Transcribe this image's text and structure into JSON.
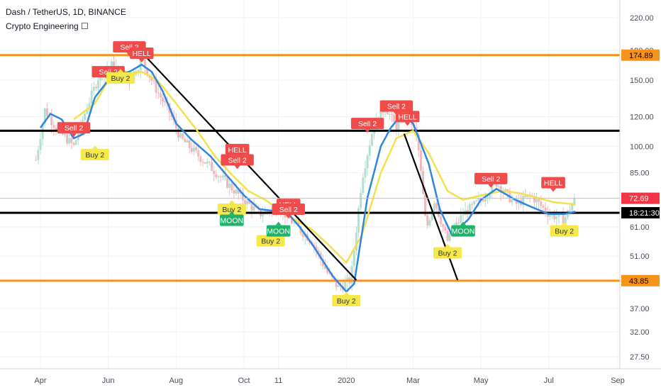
{
  "header": {
    "symbol_line": "Dash / TetherUS, 1D, BINANCE",
    "indicator_line": "Crypto Engineering ☐"
  },
  "colors": {
    "background": "#ffffff",
    "up_candle": "#b2dfcf",
    "down_candle": "#f0b8bd",
    "fast_ma": "#2e86de",
    "slow_ma": "#f4e04d",
    "level_orange": "#f7931a",
    "level_black": "#000000",
    "sell_tag": "#ef4b4b",
    "buy_tag": "#f4e84a",
    "moon_tag": "#1fb36a",
    "current_price": "#f23645",
    "axis_text": "#4a4e59"
  },
  "chart_data": {
    "type": "candlestick",
    "y_scale": "log",
    "ylim": [
      25,
      240
    ],
    "x_ticks": [
      "Apr",
      "Jun",
      "Aug",
      "Oct",
      "11",
      "2020",
      "Mar",
      "May",
      "Jul",
      "Sep"
    ],
    "y_ticks": [
      220.0,
      180.0,
      150.0,
      120.0,
      100.0,
      85.0,
      72.69,
      61.0,
      51.0,
      43.85,
      37.0,
      32.0,
      27.5
    ],
    "price_labels": [
      {
        "text": "174.89",
        "value": 174.89,
        "kind": "level"
      },
      {
        "text": "72.69",
        "value": 72.69,
        "kind": "current"
      },
      {
        "text": "18:21:30",
        "value": 66.5,
        "kind": "countdown"
      },
      {
        "text": "43.85",
        "value": 43.85,
        "kind": "level"
      }
    ],
    "grid": true,
    "horizontal_levels": [
      {
        "value": 174.89,
        "color": "orange"
      },
      {
        "value": 110,
        "color": "black"
      },
      {
        "value": 66.5,
        "color": "black"
      },
      {
        "value": 43.85,
        "color": "orange"
      }
    ],
    "trendlines": [
      {
        "from": {
          "x": "Jul 1 2019",
          "y": 178
        },
        "to": {
          "x": "Jan 10 2020",
          "y": 44
        }
      },
      {
        "from": {
          "x": "Feb 22 2020",
          "y": 108
        },
        "to": {
          "x": "Apr 10 2020",
          "y": 44
        }
      }
    ],
    "series": [
      {
        "name": "fast",
        "x": [
          "Apr 1 2019",
          "Apr 10 2019",
          "Apr 20 2019",
          "May 1 2019",
          "May 10 2019",
          "May 20 2019",
          "Jun 1 2019",
          "Jun 10 2019",
          "Jun 20 2019",
          "Jul 1 2019",
          "Jul 10 2019",
          "Jul 20 2019",
          "Aug 1 2019",
          "Aug 15 2019",
          "Sep 1 2019",
          "Sep 15 2019",
          "Oct 1 2019",
          "Oct 15 2019",
          "Nov 1 2019",
          "Nov 10 2019",
          "Nov 20 2019",
          "Dec 1 2019",
          "Dec 10 2019",
          "Dec 20 2019",
          "Jan 1 2020",
          "Jan 8 2020",
          "Jan 20 2020",
          "Feb 1 2020",
          "Feb 10 2020",
          "Feb 20 2020",
          "Mar 1 2020",
          "Mar 15 2020",
          "Mar 25 2020",
          "Apr 5 2020",
          "Apr 20 2020",
          "May 1 2020",
          "May 15 2020",
          "Jun 1 2020",
          "Jun 15 2020",
          "Jul 1 2020",
          "Jul 15 2020",
          "Jul 25 2020"
        ],
        "values": [
          112,
          122,
          118,
          105,
          108,
          135,
          150,
          155,
          158,
          165,
          158,
          140,
          115,
          104,
          94,
          84,
          74,
          68,
          67,
          66,
          61,
          55,
          50,
          45,
          41,
          43,
          73,
          100,
          112,
          122,
          115,
          90,
          68,
          58,
          64,
          72,
          77,
          72,
          69,
          66,
          66,
          67
        ]
      },
      {
        "name": "slow",
        "x": [
          "May 1 2019",
          "May 20 2019",
          "Jun 1 2019",
          "Jun 20 2019",
          "Jul 1 2019",
          "Jul 15 2019",
          "Aug 1 2019",
          "Aug 20 2019",
          "Sep 5 2019",
          "Sep 20 2019",
          "Oct 5 2019",
          "Oct 20 2019",
          "Nov 1 2019",
          "Nov 15 2019",
          "Dec 1 2019",
          "Dec 15 2019",
          "Jan 1 2020",
          "Jan 15 2020",
          "Feb 1 2020",
          "Feb 15 2020",
          "Mar 1 2020",
          "Mar 15 2020",
          "Apr 1 2020",
          "Apr 15 2020",
          "May 1 2020",
          "May 20 2020",
          "Jun 5 2020",
          "Jun 20 2020",
          "Jul 5 2020",
          "Jul 25 2020"
        ],
        "values": [
          118,
          130,
          150,
          155,
          158,
          150,
          130,
          110,
          94,
          84,
          76,
          72,
          68,
          64,
          60,
          55,
          49,
          58,
          85,
          105,
          110,
          96,
          76,
          72,
          74,
          76,
          75,
          73,
          71,
          70
        ]
      },
      {
        "name": "price",
        "x": [
          "Mar 28 2019",
          "Apr 5 2019",
          "Apr 15 2019",
          "May 1 2019",
          "May 12 2019",
          "May 25 2019",
          "Jun 5 2019",
          "Jun 20 2019",
          "Jul 1 2019",
          "Jul 15 2019",
          "Jul 25 2019",
          "Aug 5 2019",
          "Aug 20 2019",
          "Sep 1 2019",
          "Sep 15 2019",
          "Oct 1 2019",
          "Oct 15 2019",
          "Nov 1 2019",
          "Nov 15 2019",
          "Dec 1 2019",
          "Dec 15 2019",
          "Dec 25 2019",
          "Jan 5 2020",
          "Jan 15 2020",
          "Jan 25 2020",
          "Feb 5 2020",
          "Feb 15 2020",
          "Feb 25 2020",
          "Mar 5 2020",
          "Mar 13 2020",
          "Mar 20 2020",
          "Apr 1 2020",
          "Apr 15 2020",
          "May 1 2020",
          "May 15 2020",
          "Jun 1 2020",
          "Jun 15 2020",
          "Jul 1 2020",
          "Jul 15 2020",
          "Jul 25 2020"
        ],
        "values": [
          92,
          125,
          112,
          100,
          125,
          158,
          165,
          150,
          170,
          140,
          125,
          105,
          95,
          88,
          80,
          72,
          66,
          69,
          62,
          56,
          46,
          42,
          44,
          82,
          112,
          128,
          112,
          125,
          104,
          60,
          72,
          56,
          66,
          72,
          80,
          70,
          74,
          66,
          64,
          72.69
        ]
      }
    ],
    "signals": [
      {
        "text": "Sell 2",
        "kind": "sell",
        "x": "May 1 2019",
        "y": 112
      },
      {
        "text": "Sell 2",
        "kind": "sell",
        "x": "Jun 1 2019",
        "y": 158
      },
      {
        "text": "Sell 2",
        "kind": "sell",
        "x": "Jun 20 2019",
        "y": 184
      },
      {
        "text": "HELL",
        "kind": "sell",
        "x": "Jul 1 2019",
        "y": 177
      },
      {
        "text": "HELL",
        "kind": "sell",
        "x": "Sep 25 2019",
        "y": 98
      },
      {
        "text": "Sell 2",
        "kind": "sell",
        "x": "Sep 25 2019",
        "y": 92
      },
      {
        "text": "HELL",
        "kind": "sell",
        "x": "Nov 10 2019",
        "y": 70
      },
      {
        "text": "Sell 2",
        "kind": "sell",
        "x": "Nov 10 2019",
        "y": 68
      },
      {
        "text": "Sell 2",
        "kind": "sell",
        "x": "Jan 20 2020",
        "y": 115
      },
      {
        "text": "Sell 2",
        "kind": "sell",
        "x": "Feb 15 2020",
        "y": 128
      },
      {
        "text": "HELL",
        "kind": "sell",
        "x": "Feb 25 2020",
        "y": 120
      },
      {
        "text": "Sell 2",
        "kind": "sell",
        "x": "May 10 2020",
        "y": 82
      },
      {
        "text": "HELL",
        "kind": "sell",
        "x": "Jul 5 2020",
        "y": 80
      },
      {
        "text": "Buy 2",
        "kind": "buy",
        "x": "Jun 12 2019",
        "y": 152
      },
      {
        "text": "Buy 2",
        "kind": "buy",
        "x": "May 20 2019",
        "y": 95
      },
      {
        "text": "Buy 2",
        "kind": "buy",
        "x": "Sep 20 2019",
        "y": 68
      },
      {
        "text": "Buy 2",
        "kind": "buy",
        "x": "Oct 25 2019",
        "y": 56
      },
      {
        "text": "Buy 2",
        "kind": "buy",
        "x": "Jan 1 2020",
        "y": 38.8
      },
      {
        "text": "Buy 2",
        "kind": "buy",
        "x": "Apr 1 2020",
        "y": 52
      },
      {
        "text": "Buy 2",
        "kind": "buy",
        "x": "Jul 15 2020",
        "y": 59.5
      },
      {
        "text": "MOON",
        "kind": "moon",
        "x": "Sep 20 2019",
        "y": 63.5
      },
      {
        "text": "MOON",
        "kind": "moon",
        "x": "Nov 1 2019",
        "y": 59.5
      },
      {
        "text": "MOON",
        "kind": "moon",
        "x": "Apr 15 2020",
        "y": 59.5
      }
    ]
  }
}
